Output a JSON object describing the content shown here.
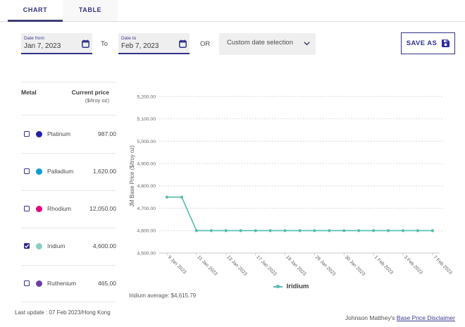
{
  "tabs": [
    {
      "label": "CHART",
      "active": true
    },
    {
      "label": "TABLE",
      "active": false
    }
  ],
  "controls": {
    "date_from": {
      "label": "Date from",
      "value": "Jan 7, 2023"
    },
    "to_label": "To",
    "date_to": {
      "label": "Date to",
      "value": "Feb 7, 2023"
    },
    "or_label": "OR",
    "custom_select": {
      "value": "Custom date selection"
    },
    "save_as_label": "SAVE AS"
  },
  "metals": {
    "header": {
      "col_metal": "Metal",
      "col_price_line1": "Current price",
      "col_price_line2": "($/troy oz)"
    },
    "rows": [
      {
        "name": "Platinum",
        "price": "987.00",
        "checked": false,
        "color": "#2323a5"
      },
      {
        "name": "Palladium",
        "price": "1,620.00",
        "checked": false,
        "color": "#0b9dd6"
      },
      {
        "name": "Rhodium",
        "price": "12,050.00",
        "checked": false,
        "color": "#e6007d"
      },
      {
        "name": "Iridium",
        "price": "4,600.00",
        "checked": true,
        "color": "#87cfc5"
      },
      {
        "name": "Ruthenium",
        "price": "465.00",
        "checked": false,
        "color": "#6f3da6"
      }
    ],
    "last_update": "Last update : 07 Feb 2023/Hong Kong"
  },
  "chart_data": {
    "type": "line",
    "ylabel": "JM Base Price ($/troy oz)",
    "ylim": [
      4500,
      5200
    ],
    "ytick_step": 100,
    "grid": "horizontal-dotted",
    "legend_position": "bottom",
    "x": [
      "9 Jan 2023",
      "10 Jan 2023",
      "11 Jan 2023",
      "12 Jan 2023",
      "13 Jan 2023",
      "16 Jan 2023",
      "17 Jan 2023",
      "18 Jan 2023",
      "19 Jan 2023",
      "20 Jan 2023",
      "26 Jan 2023",
      "27 Jan 2023",
      "30 Jan 2023",
      "31 Jan 2023",
      "1 Feb 2023",
      "2 Feb 2023",
      "3 Feb 2023",
      "6 Feb 2023",
      "7 Feb 2023"
    ],
    "x_label_every": 2,
    "series": [
      {
        "name": "Iridium",
        "color": "#54bcae",
        "values": [
          4750,
          4750,
          4600,
          4600,
          4600,
          4600,
          4600,
          4600,
          4600,
          4600,
          4600,
          4600,
          4600,
          4600,
          4600,
          4600,
          4600,
          4600,
          4600
        ]
      }
    ],
    "average_label": "Iridium average: $4,615.79"
  },
  "footer": {
    "prefix": "Johnson Matthey's",
    "link": "Base Price Disclaimer"
  }
}
